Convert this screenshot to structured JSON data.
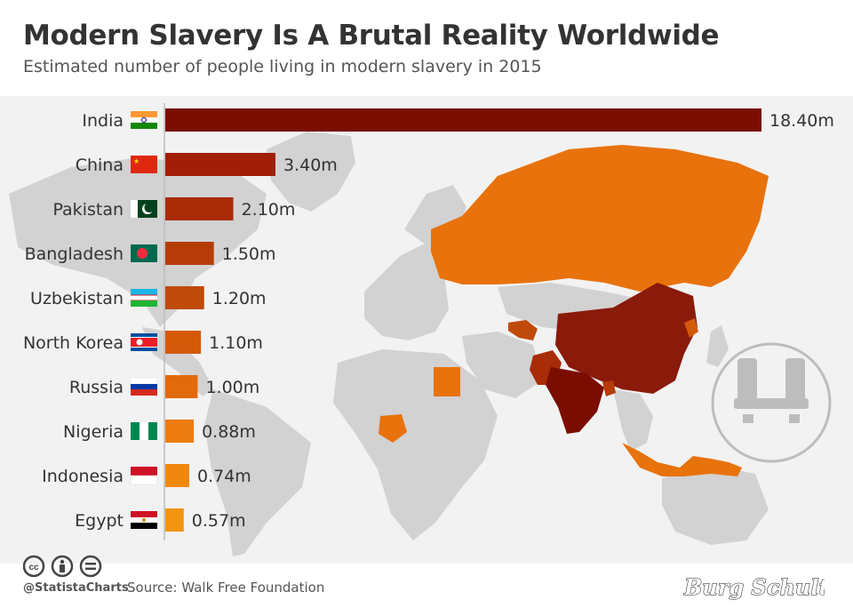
{
  "header": {
    "title": "Modern Slavery Is A Brutal Reality Worldwide",
    "subtitle": "Estimated number of people living in modern slavery in 2015"
  },
  "footer": {
    "handle": "@StatistaCharts",
    "source": "Source: Walk Free Foundation",
    "signature": "Burg Schultz"
  },
  "icons": [
    "cc-icon",
    "by-icon",
    "nd-icon",
    "shackled-hands-icon"
  ],
  "colors": {
    "map_land": "#d2d2d2",
    "map_highlight_orange": "#e8720c",
    "map_highlight_dark": "#8a1a0a"
  },
  "chart_data": {
    "type": "bar",
    "orientation": "horizontal",
    "categories": [
      "India",
      "China",
      "Pakistan",
      "Bangladesh",
      "Uzbekistan",
      "North Korea",
      "Russia",
      "Nigeria",
      "Indonesia",
      "Egypt"
    ],
    "values": [
      18.4,
      3.4,
      2.1,
      1.5,
      1.2,
      1.1,
      1.0,
      0.88,
      0.74,
      0.57
    ],
    "labels": [
      "18.40m",
      "3.40m",
      "2.10m",
      "1.50m",
      "1.20m",
      "1.10m",
      "1.00m",
      "0.88m",
      "0.74m",
      "0.57m"
    ],
    "colors": [
      "#7b0c00",
      "#a11e07",
      "#a82c08",
      "#b53c08",
      "#c04a09",
      "#d45a0a",
      "#e2690c",
      "#ec7c0f",
      "#f0880f",
      "#f39312"
    ],
    "xlim": [
      0,
      18.4
    ],
    "grid": false
  }
}
